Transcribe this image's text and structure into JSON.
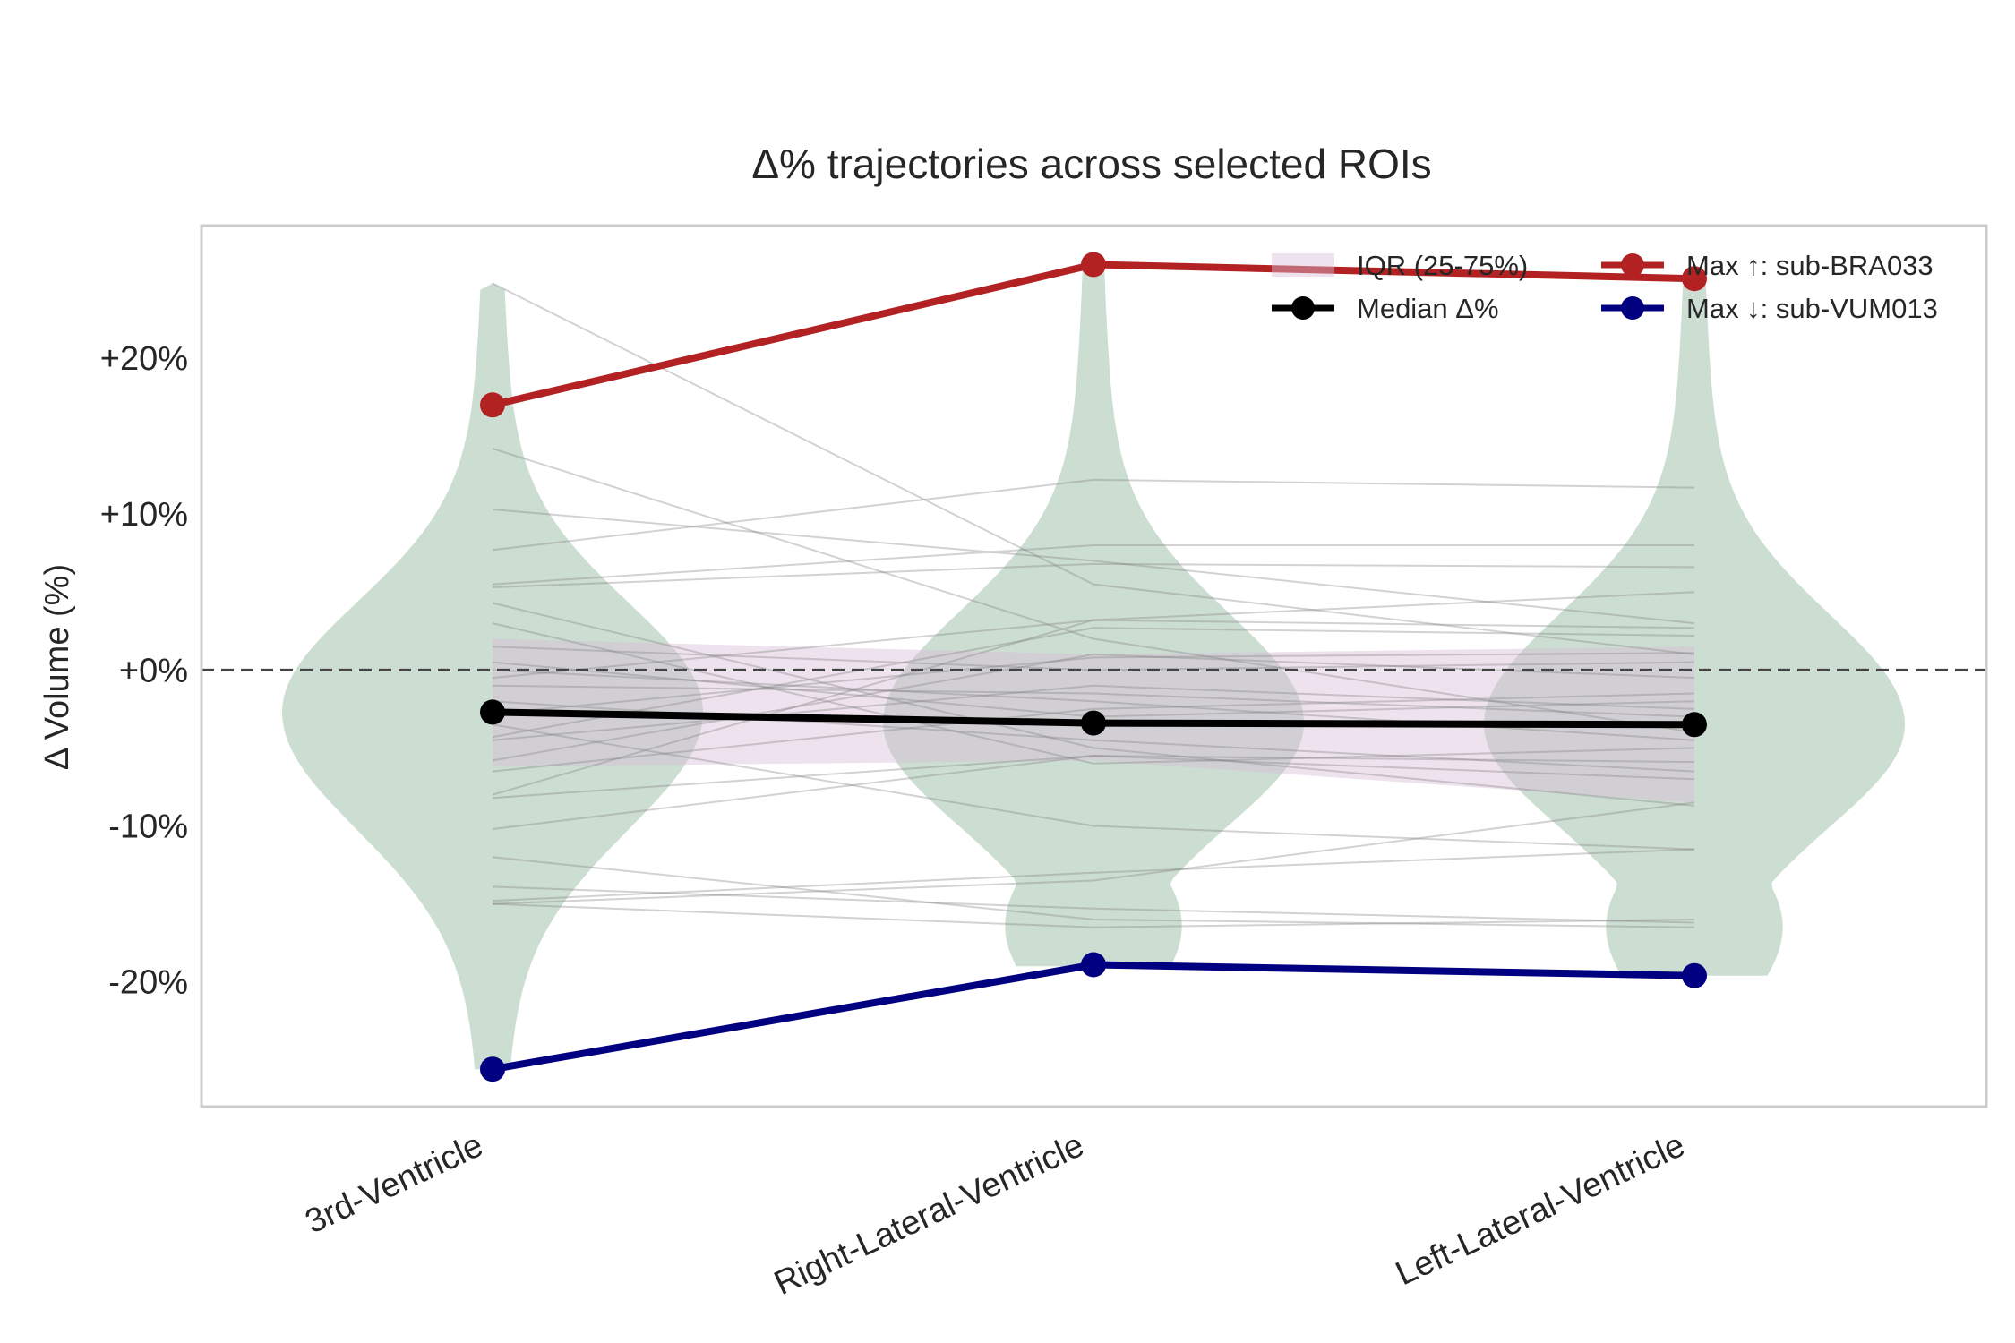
{
  "chart_data": {
    "type": "line",
    "title": "Δ% trajectories across selected ROIs",
    "ylabel": "Δ Volume (%)",
    "xlabel": "",
    "categories": [
      "3rd-Ventricle",
      "Right-Lateral-Ventricle",
      "Left-Lateral-Ventricle"
    ],
    "ylim": [
      -28,
      28.5
    ],
    "yticks": [
      -20,
      -10,
      0,
      10,
      20
    ],
    "ytick_labels": [
      "-20%",
      "-10%",
      "+0%",
      "+10%",
      "+20%"
    ],
    "reference_line": {
      "y": 0,
      "style": "dashed"
    },
    "grid": false,
    "legend": {
      "placement": "top-right",
      "entries": [
        "IQR (25-75%)",
        "Max ↑: sub-BRA033",
        "Median Δ%",
        "Max ↓: sub-VUM013"
      ]
    },
    "highlight_series": [
      {
        "name": "Max ↑: sub-BRA033",
        "values": [
          17.0,
          26.0,
          25.1
        ],
        "color": "#b22222"
      },
      {
        "name": "Max ↓: sub-VUM013",
        "values": [
          -25.6,
          -18.9,
          -19.6
        ],
        "color": "#000080"
      },
      {
        "name": "Median Δ%",
        "values": [
          -2.7,
          -3.4,
          -3.5
        ],
        "color": "#000000"
      }
    ],
    "iqr": {
      "name": "IQR (25-75%)",
      "color": "#d8bfd8",
      "q25": [
        -6.2,
        -5.8,
        -8.5
      ],
      "q75": [
        2.0,
        1.0,
        1.5
      ]
    },
    "violins": [
      {
        "category": "3rd-Ventricle",
        "ymin": -25.6,
        "ymax": 24.8,
        "color": "#8fb49c"
      },
      {
        "category": "Right-Lateral-Ventricle",
        "ymin": -19.0,
        "ymax": 26.0,
        "color": "#8fb49c"
      },
      {
        "category": "Left-Lateral-Ventricle",
        "ymin": -19.6,
        "ymax": 25.1,
        "color": "#8fb49c"
      }
    ],
    "subjects": [
      [
        24.8,
        5.5,
        1.0
      ],
      [
        14.2,
        2.0,
        -4.0
      ],
      [
        10.3,
        7.0,
        3.0
      ],
      [
        7.7,
        12.2,
        11.7
      ],
      [
        5.5,
        8.0,
        8.0
      ],
      [
        5.3,
        6.8,
        6.6
      ],
      [
        4.3,
        -5.0,
        -8.7
      ],
      [
        -2.8,
        0.8,
        1.1
      ],
      [
        -3.5,
        -10.0,
        -11.5
      ],
      [
        -4.3,
        2.7,
        2.2
      ],
      [
        -5.8,
        1.0,
        -0.5
      ],
      [
        -8.2,
        -5.5,
        -5.9
      ],
      [
        -8.0,
        3.2,
        2.7
      ],
      [
        -10.2,
        -5.5,
        -7.0
      ],
      [
        -12.0,
        -16.0,
        -16.5
      ],
      [
        -13.9,
        -15.3,
        -16.2
      ],
      [
        -14.8,
        -13.0,
        -11.5
      ],
      [
        -15.0,
        -13.5,
        -8.5
      ],
      [
        -15.0,
        -16.5,
        -16.0
      ],
      [
        0.5,
        -3.0,
        -2.0
      ],
      [
        -1.0,
        -1.5,
        -3.0
      ],
      [
        1.5,
        0.0,
        0.5
      ],
      [
        -0.5,
        3.2,
        5.0
      ],
      [
        -2.0,
        -4.5,
        -6.5
      ],
      [
        -4.5,
        -1.0,
        -2.5
      ],
      [
        3.0,
        -6.0,
        -5.0
      ],
      [
        -6.5,
        -2.5,
        -1.5
      ],
      [
        0.0,
        -2.0,
        -4.5
      ]
    ]
  }
}
